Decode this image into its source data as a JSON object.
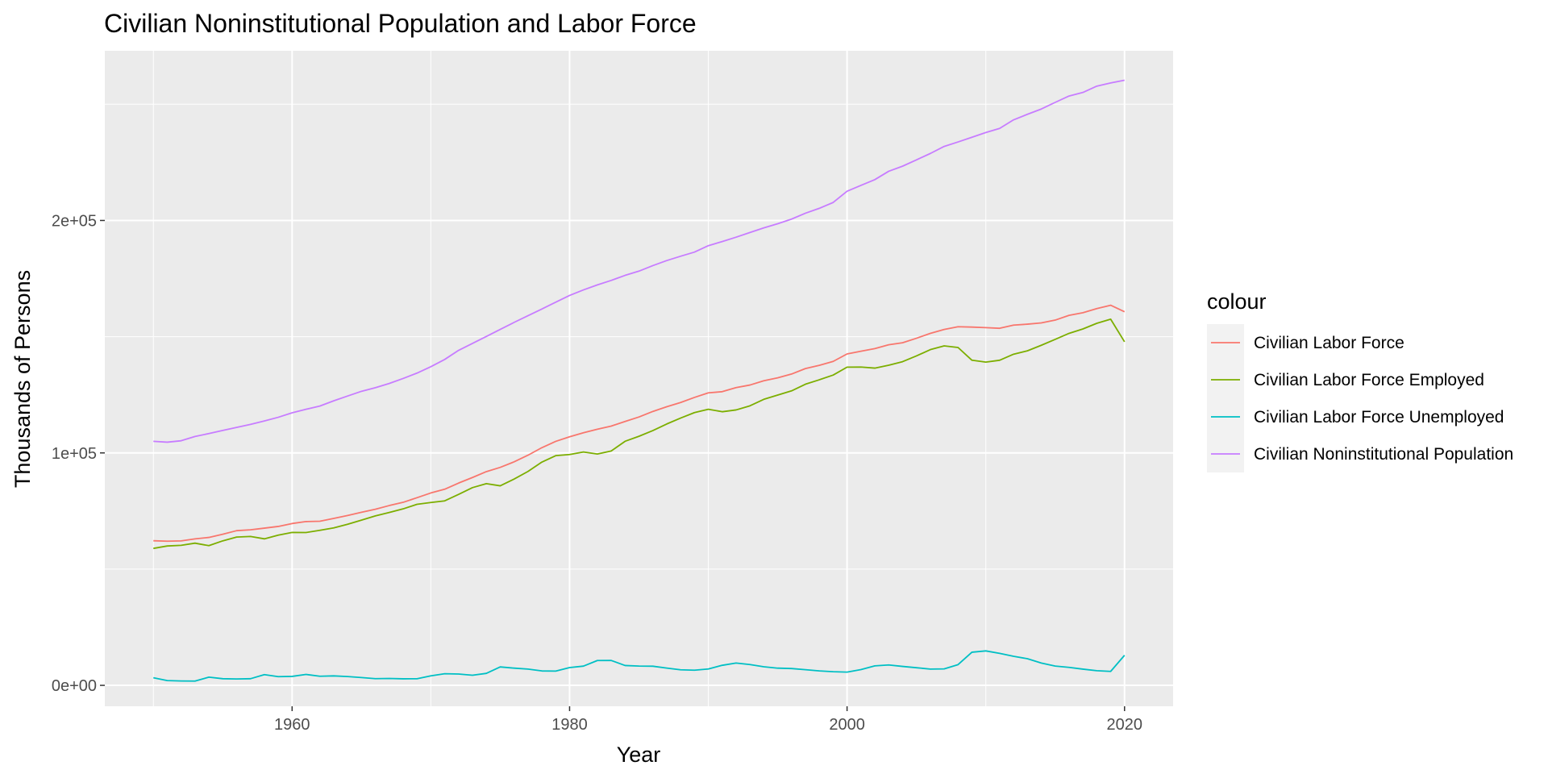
{
  "chart_data": {
    "type": "line",
    "title": "Civilian Noninstitutional Population and Labor Force",
    "xlabel": "Year",
    "ylabel": "Thousands of Persons",
    "xlim": [
      1946.5,
      2023.5
    ],
    "ylim": [
      -9000,
      273000
    ],
    "x_ticks": [
      1960,
      1980,
      2000,
      2020
    ],
    "x_tick_labels": [
      "1960",
      "1980",
      "2000",
      "2020"
    ],
    "y_ticks": [
      0,
      100000,
      200000
    ],
    "y_tick_labels": [
      "0e+00",
      "1e+05",
      "2e+05"
    ],
    "grid": true,
    "legend": {
      "title": "colour",
      "position": "right"
    },
    "x": [
      1950,
      1951,
      1952,
      1953,
      1954,
      1955,
      1956,
      1957,
      1958,
      1959,
      1960,
      1961,
      1962,
      1963,
      1964,
      1965,
      1966,
      1967,
      1968,
      1969,
      1970,
      1971,
      1972,
      1973,
      1974,
      1975,
      1976,
      1977,
      1978,
      1979,
      1980,
      1981,
      1982,
      1983,
      1984,
      1985,
      1986,
      1987,
      1988,
      1989,
      1990,
      1991,
      1992,
      1993,
      1994,
      1995,
      1996,
      1997,
      1998,
      1999,
      2000,
      2001,
      2002,
      2003,
      2004,
      2005,
      2006,
      2007,
      2008,
      2009,
      2010,
      2011,
      2012,
      2013,
      2014,
      2015,
      2016,
      2017,
      2018,
      2019,
      2020
    ],
    "series": [
      {
        "name": "Civilian Labor Force",
        "color": "#F8766D",
        "values": [
          62208,
          62017,
          62138,
          63015,
          63643,
          65023,
          66552,
          66929,
          67639,
          68369,
          69628,
          70459,
          70614,
          71833,
          73091,
          74455,
          75770,
          77347,
          78737,
          80734,
          82771,
          84382,
          87034,
          89429,
          91949,
          93775,
          96158,
          99009,
          102251,
          104962,
          106940,
          108670,
          110204,
          111550,
          113544,
          115461,
          117834,
          119865,
          121669,
          123869,
          125840,
          126346,
          128105,
          129200,
          131056,
          132304,
          133943,
          136297,
          137673,
          139368,
          142583,
          143734,
          144863,
          146510,
          147401,
          149320,
          151428,
          153124,
          154287,
          154142,
          153889,
          153617,
          154975,
          155389,
          155922,
          157130,
          159187,
          160320,
          162075,
          163539,
          160742
        ]
      },
      {
        "name": "Civilian Labor Force Employed",
        "color": "#7CAE00",
        "values": [
          58918,
          59961,
          60250,
          61179,
          60109,
          62170,
          63799,
          64071,
          63036,
          64630,
          65778,
          65746,
          66702,
          67762,
          69305,
          71088,
          72895,
          74372,
          75920,
          77902,
          78678,
          79367,
          82153,
          85064,
          86794,
          85846,
          88752,
          92017,
          96048,
          98824,
          99303,
          100397,
          99526,
          100834,
          105005,
          107150,
          109597,
          112440,
          114968,
          117342,
          118793,
          117718,
          118492,
          120259,
          123060,
          124900,
          126708,
          129558,
          131463,
          133488,
          136891,
          136933,
          136485,
          137736,
          139252,
          141730,
          144427,
          146047,
          145362,
          139877,
          139064,
          139869,
          142469,
          143929,
          146305,
          148834,
          151436,
          153337,
          155761,
          157538,
          147795
        ]
      },
      {
        "name": "Civilian Labor Force Unemployed",
        "color": "#00BFC4",
        "values": [
          3288,
          2055,
          1883,
          1834,
          3532,
          2852,
          2750,
          2859,
          4602,
          3740,
          3852,
          4714,
          3911,
          4070,
          3786,
          3366,
          2875,
          2975,
          2817,
          2832,
          4093,
          5016,
          4882,
          4365,
          5156,
          7929,
          7406,
          6991,
          6202,
          6137,
          7637,
          8273,
          10678,
          10717,
          8539,
          8312,
          8237,
          7425,
          6701,
          6528,
          7047,
          8628,
          9613,
          8940,
          7996,
          7404,
          7236,
          6739,
          6210,
          5880,
          5692,
          6801,
          8378,
          8774,
          8149,
          7591,
          7001,
          7078,
          8924,
          14265,
          14825,
          13747,
          12506,
          11460,
          9617,
          8296,
          7751,
          6982,
          6314,
          6001,
          12947
        ]
      },
      {
        "name": "Civilian Noninstitutional Population",
        "color": "#C77CFF",
        "values": [
          104995,
          104621,
          105231,
          107056,
          108321,
          109683,
          110954,
          112265,
          113727,
          115329,
          117245,
          118771,
          120153,
          122416,
          124485,
          126513,
          128058,
          129874,
          132028,
          134335,
          137085,
          140216,
          144126,
          147096,
          150120,
          153153,
          156150,
          159033,
          161910,
          164863,
          167745,
          170130,
          172271,
          174215,
          176383,
          178206,
          180587,
          182753,
          184613,
          186393,
          189164,
          190925,
          192805,
          194838,
          196814,
          198584,
          200591,
          203133,
          205220,
          207753,
          212577,
          215092,
          217570,
          221168,
          223357,
          226082,
          228815,
          231867,
          233788,
          235801,
          237830,
          239618,
          243284,
          245679,
          247947,
          250801,
          253538,
          255079,
          257791,
          259175,
          260329
        ]
      }
    ]
  }
}
